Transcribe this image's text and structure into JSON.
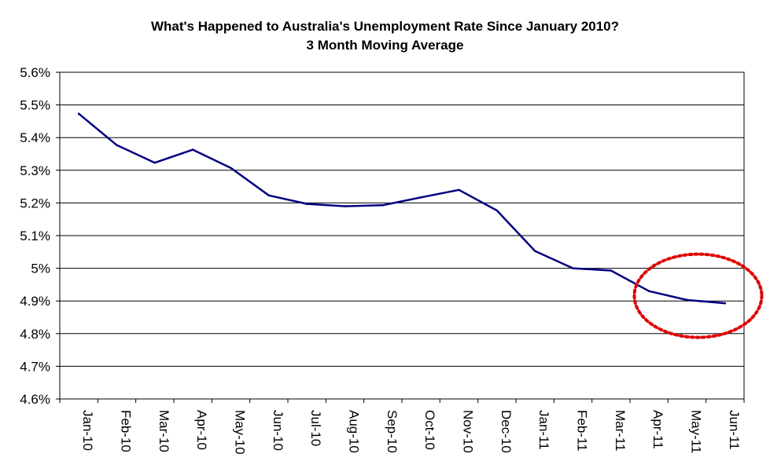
{
  "chart_data": {
    "type": "line",
    "title": "What's Happened to Australia's Unemployment Rate Since January 2010?",
    "subtitle": "3 Month Moving Average",
    "xlabel": "",
    "ylabel": "",
    "categories": [
      "Jan-10",
      "Feb-10",
      "Mar-10",
      "Apr-10",
      "May-10",
      "Jun-10",
      "Jul-10",
      "Aug-10",
      "Sep-10",
      "Oct-10",
      "Nov-10",
      "Dec-10",
      "Jan-11",
      "Feb-11",
      "Mar-11",
      "Apr-11",
      "May-11",
      "Jun-11"
    ],
    "y_tick_labels": [
      "5.6%",
      "5.5%",
      "5.4%",
      "5.3%",
      "5.2%",
      "5.1%",
      "5%",
      "4.9%",
      "4.8%",
      "4.7%",
      "4.6%"
    ],
    "y_tick_values": [
      5.6,
      5.5,
      5.4,
      5.3,
      5.2,
      5.1,
      5.0,
      4.9,
      4.8,
      4.7,
      4.6
    ],
    "ylim": [
      4.6,
      5.6
    ],
    "series": [
      {
        "values": [
          5.473,
          5.377,
          5.323,
          5.363,
          5.307,
          5.223,
          5.197,
          5.19,
          5.193,
          5.217,
          5.24,
          5.177,
          5.053,
          5.0,
          4.993,
          4.93,
          4.903,
          4.893
        ],
        "color": "#000080"
      }
    ],
    "grid": true,
    "legend": "none",
    "annotation": {
      "shape": "dotted-ellipse",
      "color": "#e00000",
      "around_categories": [
        "Apr-11",
        "Jun-11"
      ]
    }
  }
}
